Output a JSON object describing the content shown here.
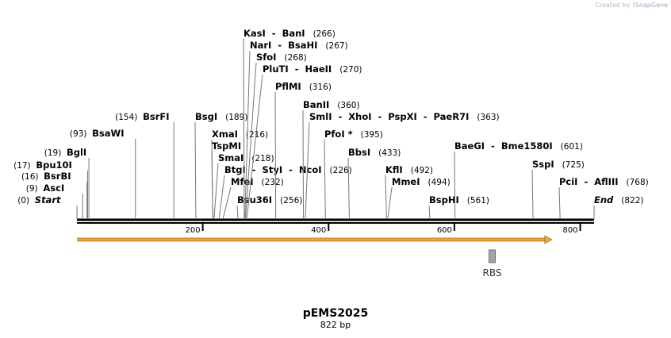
{
  "credit": {
    "prefix": "Created by",
    "brand": "SnapGene"
  },
  "title": "pEMS2025",
  "length_label": "822 bp",
  "total_bp": 822,
  "ticks": [
    200,
    400,
    600,
    800
  ],
  "features": [
    {
      "name": "feature-arrow",
      "label": "",
      "start": 1,
      "end": 755,
      "color": "#f0a830",
      "type": "arrow"
    },
    {
      "name": "rbs-feature",
      "label": "RBS",
      "start": 655,
      "end": 665,
      "color": "#a0a4ab",
      "type": "box"
    }
  ],
  "sites": [
    {
      "label": "Start",
      "pos": 0,
      "pos_text": "(0)",
      "italic": true
    },
    {
      "label": "AscI",
      "pos": 9,
      "pos_text": "(9)"
    },
    {
      "label": "BsrBI",
      "pos": 16,
      "pos_text": "(16)"
    },
    {
      "label": "Bpu10I",
      "pos": 17,
      "pos_text": "(17)"
    },
    {
      "label": "BglI",
      "pos": 19,
      "pos_text": "(19)"
    },
    {
      "label": "BsaWI",
      "pos": 93,
      "pos_text": "(93)"
    },
    {
      "label": "BsrFI",
      "pos": 154,
      "pos_text": "(154)"
    },
    {
      "label": "BsgI",
      "pos": 189,
      "pos_text": "(189)"
    },
    {
      "label": "XmaI",
      "pos": 216,
      "pos_text": "(216)"
    },
    {
      "label": "TspMI",
      "pos": 216,
      "pos_text": ""
    },
    {
      "label": "SmaI",
      "pos": 218,
      "pos_text": "(218)"
    },
    {
      "label": "BtgI  -  StyI  -  NcoI",
      "pos": 226,
      "pos_text": "(226)"
    },
    {
      "label": "MfeI",
      "pos": 232,
      "pos_text": "(232)"
    },
    {
      "label": "Bsu36I",
      "pos": 256,
      "pos_text": "(256)"
    },
    {
      "label": "KasI  -  BanI",
      "pos": 266,
      "pos_text": "(266)"
    },
    {
      "label": "NarI  -  BsaHI",
      "pos": 267,
      "pos_text": "(267)"
    },
    {
      "label": "SfoI",
      "pos": 268,
      "pos_text": "(268)"
    },
    {
      "label": "PluTI  -  HaeII",
      "pos": 270,
      "pos_text": "(270)"
    },
    {
      "label": "PflMI",
      "pos": 316,
      "pos_text": "(316)"
    },
    {
      "label": "BanII",
      "pos": 360,
      "pos_text": "(360)"
    },
    {
      "label": "SmlI  -  XhoI  -  PspXI  -  PaeR7I",
      "pos": 363,
      "pos_text": "(363)"
    },
    {
      "label": "PfoI *",
      "pos": 395,
      "pos_text": "(395)"
    },
    {
      "label": "BbsI",
      "pos": 433,
      "pos_text": "(433)"
    },
    {
      "label": "KflI",
      "pos": 492,
      "pos_text": "(492)"
    },
    {
      "label": "MmeI",
      "pos": 494,
      "pos_text": "(494)"
    },
    {
      "label": "BspHI",
      "pos": 561,
      "pos_text": "(561)"
    },
    {
      "label": "BaeGI  -  Bme1580I",
      "pos": 601,
      "pos_text": "(601)"
    },
    {
      "label": "SspI",
      "pos": 725,
      "pos_text": "(725)"
    },
    {
      "label": "PciI  -  AflIII",
      "pos": 768,
      "pos_text": "(768)"
    },
    {
      "label": "End",
      "pos": 822,
      "pos_text": "(822)",
      "italic": true
    }
  ]
}
